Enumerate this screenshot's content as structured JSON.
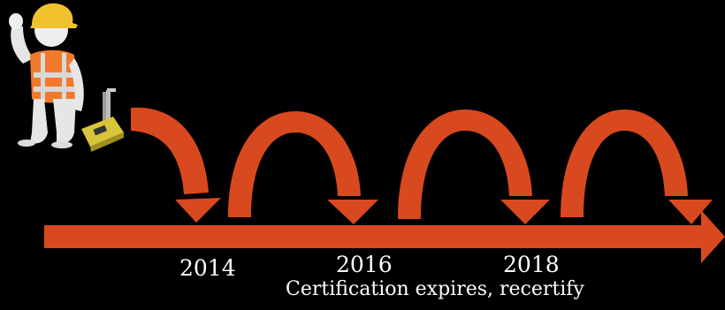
{
  "diagram": {
    "years": [
      "2014",
      "2016",
      "2018"
    ],
    "caption": "Certification expires, recertify",
    "colors": {
      "background": "#000000",
      "arrow": "#d9491f",
      "text": "#ffffff",
      "helmet": "#f2c12e",
      "vest": "#f07a2a",
      "vest_stripe": "#d8d8d8",
      "figure": "#e6e6e6",
      "device": "#d8c63a"
    },
    "icons": {
      "worker": "construction-worker-figure-icon",
      "device": "nuclear-gauge-icon"
    }
  }
}
